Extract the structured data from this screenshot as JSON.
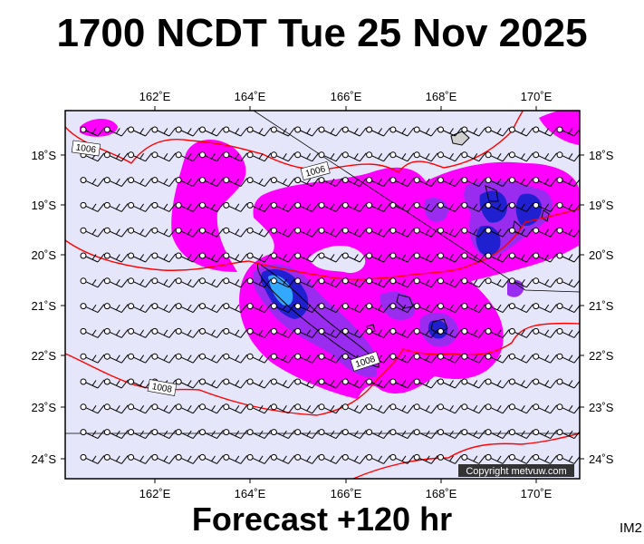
{
  "header": {
    "title": "1700 NCDT Tue 25 Nov 2025"
  },
  "footer": {
    "forecast": "Forecast +120 hr",
    "code": "IM2"
  },
  "map": {
    "lon_labels": [
      "162˚E",
      "164˚E",
      "166˚E",
      "168˚E",
      "170˚E"
    ],
    "lat_labels": [
      "18˚S",
      "19˚S",
      "20˚S",
      "21˚S",
      "22˚S",
      "23˚S",
      "24˚S"
    ],
    "isobar_labels": [
      "1006",
      "1006",
      "1008",
      "1008"
    ],
    "copyright": "Copyright metvuw.com",
    "colors": {
      "background": "#e6e6fa",
      "rain_light": "#ff00ff",
      "rain_medium": "#9a2cf0",
      "rain_heavy": "#2020d0",
      "rain_extreme": "#33a8ff",
      "isobar": "#ff0000"
    }
  }
}
